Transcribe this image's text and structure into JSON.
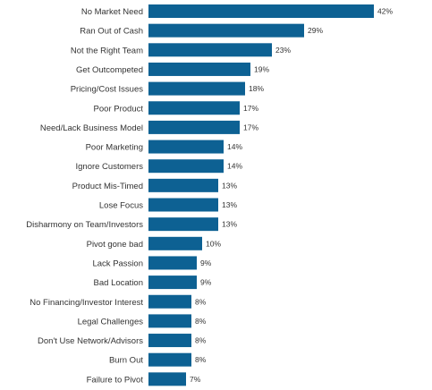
{
  "chart_data": {
    "type": "bar",
    "orientation": "horizontal",
    "title": "",
    "xlabel": "",
    "ylabel": "",
    "grid": false,
    "legend": "none",
    "value_suffix": "%",
    "bar_color": "#0d6193",
    "xlim": [
      0,
      45
    ],
    "categories": [
      "No Market Need",
      "Ran Out of Cash",
      "Not the Right Team",
      "Get Outcompeted",
      "Pricing/Cost Issues",
      "Poor Product",
      "Need/Lack Business Model",
      "Poor Marketing",
      "Ignore Customers",
      "Product Mis-Timed",
      "Lose Focus",
      "Disharmony on Team/Investors",
      "Pivot gone bad",
      "Lack Passion",
      "Bad Location",
      "No Financing/Investor Interest",
      "Legal Challenges",
      "Don't Use Network/Advisors",
      "Burn Out",
      "Failure to Pivot"
    ],
    "values": [
      42,
      29,
      23,
      19,
      18,
      17,
      17,
      14,
      14,
      13,
      13,
      13,
      10,
      9,
      9,
      8,
      8,
      8,
      8,
      7
    ],
    "value_labels": [
      "42%",
      "29%",
      "23%",
      "19%",
      "18%",
      "17%",
      "17%",
      "14%",
      "14%",
      "13%",
      "13%",
      "13%",
      "10%",
      "9%",
      "9%",
      "8%",
      "8%",
      "8%",
      "8%",
      "7%"
    ]
  }
}
